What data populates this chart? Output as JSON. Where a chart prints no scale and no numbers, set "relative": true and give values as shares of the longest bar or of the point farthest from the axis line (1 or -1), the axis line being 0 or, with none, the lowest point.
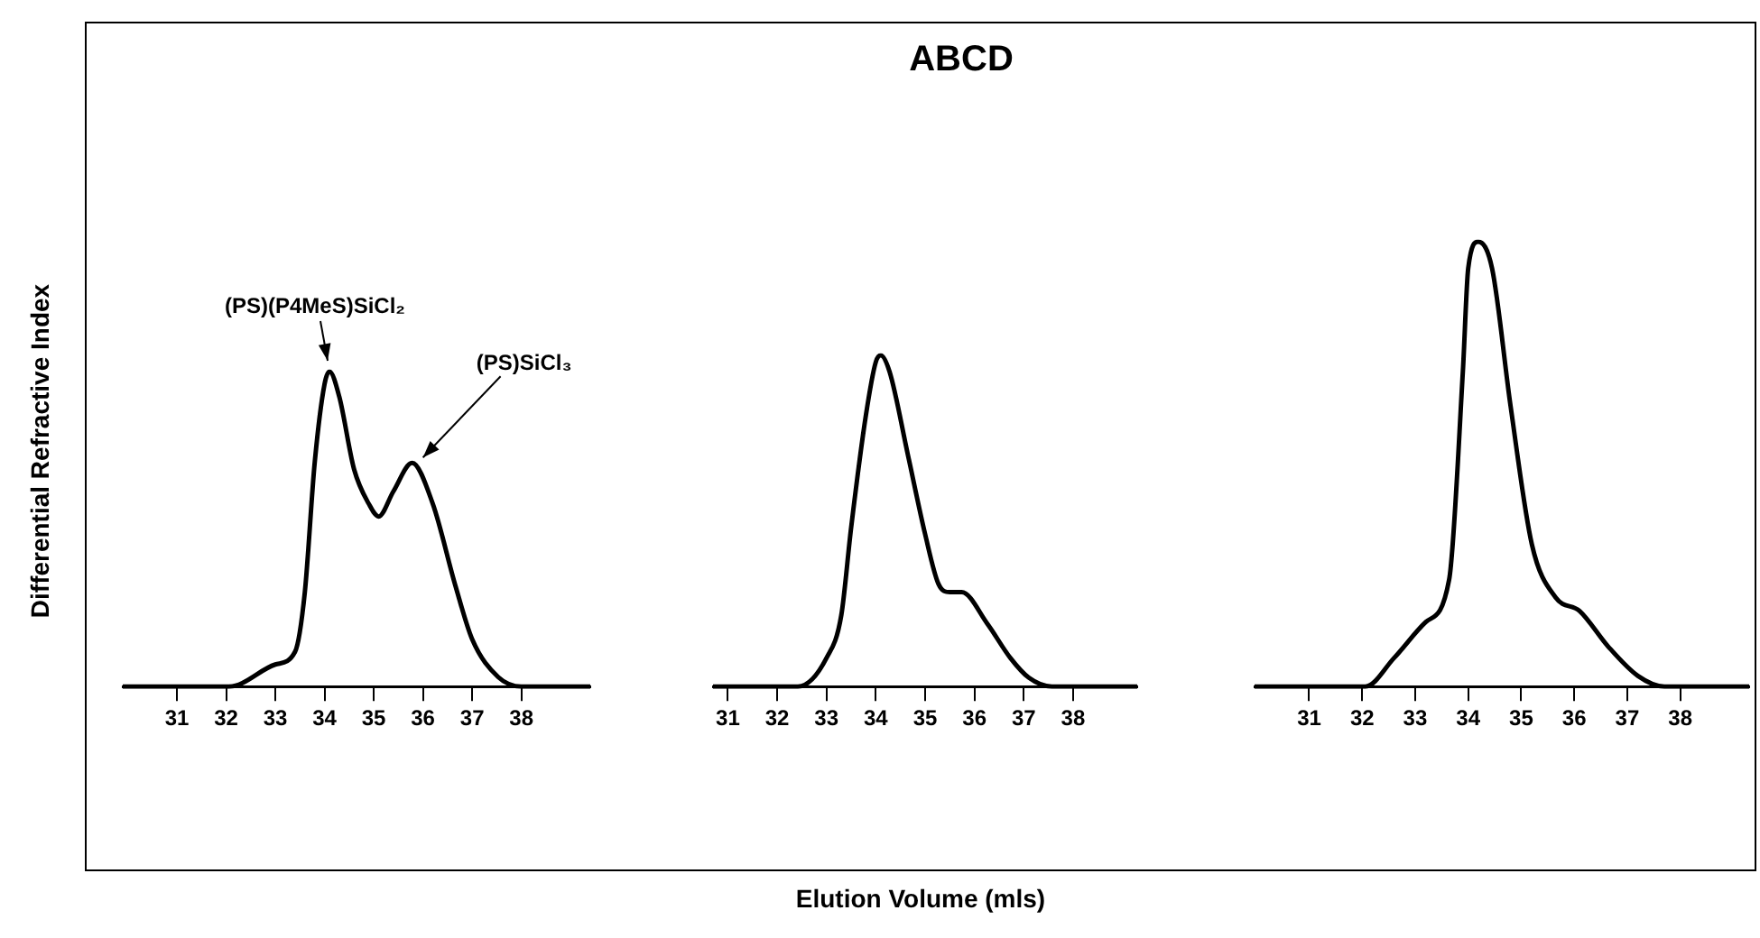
{
  "chart_data": [
    {
      "type": "line",
      "relative": true,
      "ylabel": "Differential Refractive Index",
      "color": "#000000",
      "tick_labels": "x",
      "xlim": [
        29.9,
        39.4
      ],
      "xticks": [
        31,
        32,
        33,
        34,
        35,
        36,
        37,
        38
      ],
      "x": [
        29.9,
        32.06,
        33.0,
        33.4,
        33.6,
        33.8,
        34.0,
        34.1,
        34.3,
        34.6,
        34.9,
        35.1,
        35.4,
        35.78,
        36.2,
        36.66,
        37.0,
        37.53,
        38.0,
        39.4
      ],
      "values": [
        0,
        0,
        0.07,
        0.11,
        0.3,
        0.71,
        0.96,
        1,
        0.92,
        0.69,
        0.58,
        0.54,
        0.62,
        0.71,
        0.58,
        0.32,
        0.15,
        0.03,
        0,
        0
      ],
      "annotations": [
        {
          "text": "(PS)(P4MeS)SiCl₂",
          "x": 34.1,
          "y": 1
        },
        {
          "text": "(PS)SiCl₃",
          "x": 35.78,
          "y": 0.71
        }
      ]
    },
    {
      "type": "line",
      "relative": true,
      "title": "ABCD",
      "xlabel": "Elution Volume (mls)",
      "color": "#000000",
      "tick_labels": "x",
      "xlim": [
        30.7,
        39.3
      ],
      "xticks": [
        31,
        32,
        33,
        34,
        35,
        36,
        37,
        38
      ],
      "x": [
        30.7,
        32.42,
        33.0,
        33.3,
        33.5,
        33.8,
        34.0,
        34.1,
        34.28,
        34.65,
        35.0,
        35.27,
        35.5,
        35.74,
        36.26,
        36.73,
        37.1,
        37.57,
        39.3
      ],
      "values": [
        0,
        0,
        0.086,
        0.215,
        0.48,
        0.82,
        0.98,
        1,
        0.95,
        0.7,
        0.46,
        0.31,
        0.285,
        0.285,
        0.19,
        0.086,
        0.027,
        0,
        0
      ]
    },
    {
      "type": "line",
      "relative": true,
      "color": "#000000",
      "tick_labels": "x",
      "xlim": [
        29.97,
        39.3
      ],
      "xticks": [
        31,
        32,
        33,
        34,
        35,
        36,
        37,
        38
      ],
      "x": [
        29.97,
        32.06,
        32.6,
        33.2,
        33.64,
        33.9,
        34.0,
        34.19,
        34.45,
        34.8,
        35.2,
        35.65,
        36.1,
        36.64,
        37.2,
        37.7,
        39.3
      ],
      "values": [
        0,
        0,
        0.064,
        0.145,
        0.24,
        0.71,
        0.94,
        1,
        0.94,
        0.63,
        0.32,
        0.2,
        0.17,
        0.09,
        0.024,
        0,
        0
      ]
    }
  ]
}
